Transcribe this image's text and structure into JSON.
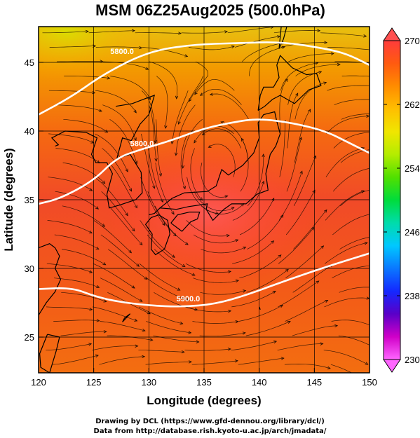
{
  "title": "MSM 06Z25Aug2025 (500.0hPa)",
  "map": {
    "xlabel": "Longitude (degrees)",
    "ylabel": "Latitude  (degrees)",
    "xlim": [
      120,
      150
    ],
    "ylim": [
      22.4,
      47.6
    ],
    "xticks": [
      120,
      125,
      130,
      135,
      140,
      145,
      150
    ],
    "yticks": [
      25,
      30,
      35,
      40,
      45
    ],
    "grid": true,
    "field": "temperature (K) shaded, streamlines, geopotential height contours",
    "contours": [
      {
        "label": "5800.0",
        "label_lon": 126.5,
        "label_lat": 45.6,
        "path": [
          [
            120,
            41.2
          ],
          [
            123,
            42.5
          ],
          [
            126,
            44.2
          ],
          [
            130,
            45.8
          ],
          [
            134,
            46.3
          ],
          [
            138,
            46.4
          ],
          [
            142,
            46.5
          ],
          [
            146,
            46.0
          ],
          [
            148,
            45.6
          ],
          [
            150,
            44.8
          ]
        ]
      },
      {
        "label": "5800.0",
        "label_lon": 128.3,
        "label_lat": 38.9,
        "path": [
          [
            120,
            34.7
          ],
          [
            122,
            35.1
          ],
          [
            125,
            36.4
          ],
          [
            127,
            38.0
          ],
          [
            129,
            38.6
          ],
          [
            132,
            39.3
          ],
          [
            135,
            40.2
          ],
          [
            138,
            40.7
          ],
          [
            140,
            40.9
          ],
          [
            143,
            40.6
          ],
          [
            146,
            40.0
          ],
          [
            148,
            39.2
          ],
          [
            150,
            38.4
          ]
        ]
      },
      {
        "label": "5900.0",
        "label_lon": 132.5,
        "label_lat": 27.6,
        "path": [
          [
            120,
            28.5
          ],
          [
            123,
            28.6
          ],
          [
            125,
            28.0
          ],
          [
            127,
            27.6
          ],
          [
            130,
            27.3
          ],
          [
            133,
            27.2
          ],
          [
            136,
            27.4
          ],
          [
            139,
            28.1
          ],
          [
            142,
            29.0
          ],
          [
            146,
            30.1
          ],
          [
            150,
            31.1
          ]
        ]
      }
    ]
  },
  "colorbar": {
    "min": 230,
    "max": 270,
    "ticks": [
      230,
      238,
      246,
      254,
      262,
      270
    ],
    "colors": [
      "#ff66ff",
      "#d000c8",
      "#5a00c8",
      "#1428ff",
      "#0a78ff",
      "#00c8ff",
      "#00dcaa",
      "#00dc3c",
      "#50e000",
      "#b4ec00",
      "#f0e600",
      "#ffbe00",
      "#ff8c00",
      "#ff5a10",
      "#ff3c3c"
    ]
  },
  "footer": {
    "line1": "Drawing by DCL (https://www.gfd-dennou.org/library/dcl/)",
    "line2": "Data from http://database.rish.kyoto-u.ac.jp/arch/jmadata/"
  }
}
